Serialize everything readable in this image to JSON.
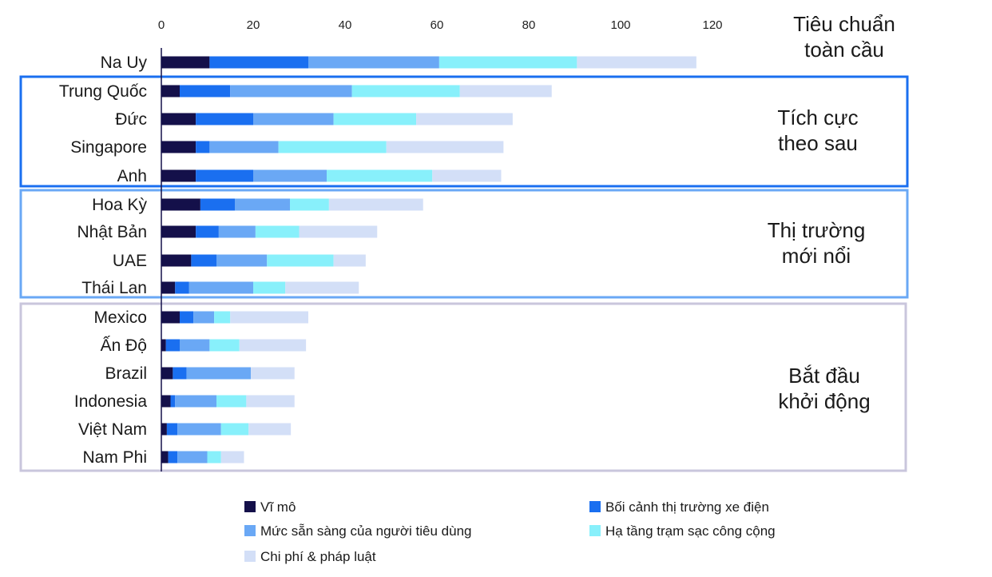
{
  "chart_data": {
    "type": "bar",
    "orientation": "horizontal",
    "stacked": true,
    "xlim": [
      0,
      120
    ],
    "xticks": [
      0,
      20,
      40,
      60,
      80,
      100,
      120
    ],
    "grid": false,
    "legend_position": "bottom",
    "categories": [
      "Na Uy",
      "Trung Quốc",
      "Đức",
      "Singapore",
      "Anh",
      "Hoa Kỳ",
      "Nhật Bản",
      "UAE",
      "Thái Lan",
      "Mexico",
      "Ấn Độ",
      "Brazil",
      "Indonesia",
      "Việt Nam",
      "Nam Phi"
    ],
    "series": [
      {
        "name": "Vĩ mô",
        "color": "#14104a",
        "values": [
          10.5,
          4,
          7.5,
          7.5,
          7.5,
          8.5,
          7.5,
          6.5,
          3,
          4,
          1,
          2.5,
          2,
          1.2,
          1.5
        ]
      },
      {
        "name": "Bối cảnh thị trường xe điện",
        "color": "#1a6ff0",
        "values": [
          21.5,
          11,
          12.5,
          3,
          12.5,
          7.5,
          5,
          5.5,
          3,
          3,
          3,
          3,
          1,
          2.3,
          2
        ]
      },
      {
        "name": "Mức sẵn sàng của người tiêu dùng",
        "color": "#6aa8f5",
        "values": [
          28.5,
          26.5,
          17.5,
          15,
          16,
          12,
          8,
          11,
          14,
          4.5,
          6.5,
          14,
          9,
          9.5,
          6.5
        ]
      },
      {
        "name": "Hạ tầng trạm sạc công cộng",
        "color": "#88f0fb",
        "values": [
          30,
          23.5,
          18,
          23.5,
          23,
          8.5,
          9.5,
          14.5,
          7,
          3.5,
          6.5,
          0,
          6.5,
          6,
          3
        ]
      },
      {
        "name": "Chi phí & pháp luật",
        "color": "#d3dff7",
        "values": [
          26,
          20,
          21,
          25.5,
          15,
          20.5,
          17,
          7,
          16,
          17,
          14.5,
          9.5,
          10.5,
          9.2,
          5
        ]
      }
    ],
    "groups": [
      {
        "label_lines": [
          "Tiêu chuẩn",
          "toàn cầu"
        ],
        "start": 0,
        "end": 0,
        "border": "none"
      },
      {
        "label_lines": [
          "Tích cực",
          "theo sau"
        ],
        "start": 1,
        "end": 4,
        "border": "#1a6ff0"
      },
      {
        "label_lines": [
          "Thị trường",
          "mới nổi"
        ],
        "start": 5,
        "end": 8,
        "border": "#6aa8f5"
      },
      {
        "label_lines": [
          "Bắt đầu",
          "khởi động"
        ],
        "start": 9,
        "end": 14,
        "border": "#c9c6dc"
      }
    ]
  }
}
